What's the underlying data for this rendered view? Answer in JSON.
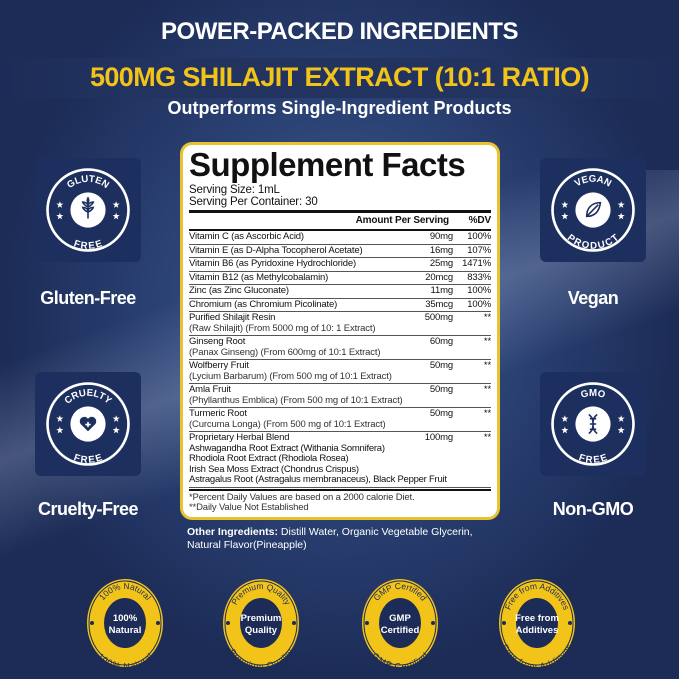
{
  "header": {
    "title": "POWER-PACKED INGREDIENTS",
    "headline": "500MG SHILAJIT EXTRACT (10:1 RATIO)",
    "subtitle": "Outperforms Single-Ingredient Products"
  },
  "badges": [
    {
      "icon": "wheat-icon",
      "ring_top": "GLUTEN",
      "ring_bottom": "FREE",
      "label": "Gluten-Free"
    },
    {
      "icon": "leaf-icon",
      "ring_top": "VEGAN",
      "ring_bottom": "PRODUCT",
      "label": "Vegan"
    },
    {
      "icon": "heart-icon",
      "ring_top": "CRUELTY",
      "ring_bottom": "FREE",
      "label": "Cruelty-Free"
    },
    {
      "icon": "dna-icon",
      "ring_top": "GMO",
      "ring_bottom": "FREE",
      "label": "Non-GMO"
    }
  ],
  "facts": {
    "title": "Supplement Facts",
    "serving_size": "Serving Size: 1mL",
    "servings": "Serving Per Container: 30",
    "col_amount": "Amount Per Serving",
    "col_dv": "%DV",
    "rows": [
      {
        "name": "Vitamin C (as Ascorbic Acid)",
        "amount": "90mg",
        "dv": "100%"
      },
      {
        "name": "Vitamin E (as D-Alpha Tocopherol Acetate)",
        "amount": "16mg",
        "dv": "107%"
      },
      {
        "name": "Vitamin B6 (as Pyridoxine Hydrochloride)",
        "amount": "25mg",
        "dv": "1471%"
      },
      {
        "name": "Vitamin B12 (as Methylcobalamin)",
        "amount": "20mcg",
        "dv": "833%"
      },
      {
        "name": "Zinc (as Zinc Gluconate)",
        "amount": "11mg",
        "dv": "100%"
      },
      {
        "name": "Chromium (as Chromium Picolinate)",
        "amount": "35mcg",
        "dv": "100%"
      },
      {
        "name": "Purified Shilajit Resin",
        "sub": "(Raw Shilajit) (From 5000 mg of 10: 1 Extract)",
        "amount": "500mg",
        "dv": "**"
      },
      {
        "name": "Ginseng Root",
        "sub": "(Panax Ginseng) (From 600mg of 10:1 Extract)",
        "amount": "60mg",
        "dv": "**"
      },
      {
        "name": "Wolfberry Fruit",
        "sub": "(Lycium Barbarum) (From 500 mg of 10:1 Extract)",
        "amount": "50mg",
        "dv": "**"
      },
      {
        "name": "Amla Fruit",
        "sub": "(Phyllanthus Emblica) (From 500 mg of 10:1 Extract)",
        "amount": "50mg",
        "dv": "**"
      },
      {
        "name": "Turmeric Root",
        "sub": "(Curcuma Longa) (From 500 mg of 10:1 Extract)",
        "amount": "50mg",
        "dv": "**"
      }
    ],
    "blend": {
      "name": "Proprietary Herbal Blend",
      "amount": "100mg",
      "dv": "**",
      "items": [
        "Ashwagandha Root Extract (Withania Somnifera)",
        "Rhodiola Root Extract (Rhodiola Rosea)",
        "Irish Sea Moss Extract (Chondrus Crispus)",
        "Astragalus Root (Astragalus membranaceus), Black Pepper Fruit"
      ]
    },
    "footnote1": "*Percent Daily Values are based on a 2000 calorie Diet.",
    "footnote2": "**Daily Value Not Established"
  },
  "other": {
    "label": "Other Ingredients:",
    "text": " Distill Water, Organic Vegetable Glycerin, Natural Flavor(Pineapple)"
  },
  "seals": [
    {
      "center": [
        "100%",
        "Natural"
      ],
      "ring": "100% Natural"
    },
    {
      "center": [
        "Premium",
        "Quality"
      ],
      "ring": "Premium Quality"
    },
    {
      "center": [
        "GMP",
        "Certified"
      ],
      "ring": "GMP Certified"
    },
    {
      "center": [
        "Free from",
        "Additives"
      ],
      "ring": "Free from Additives"
    }
  ],
  "colors": {
    "navy": "#1c2c57",
    "gold": "#f2c318",
    "panel_border": "#e9c230"
  }
}
